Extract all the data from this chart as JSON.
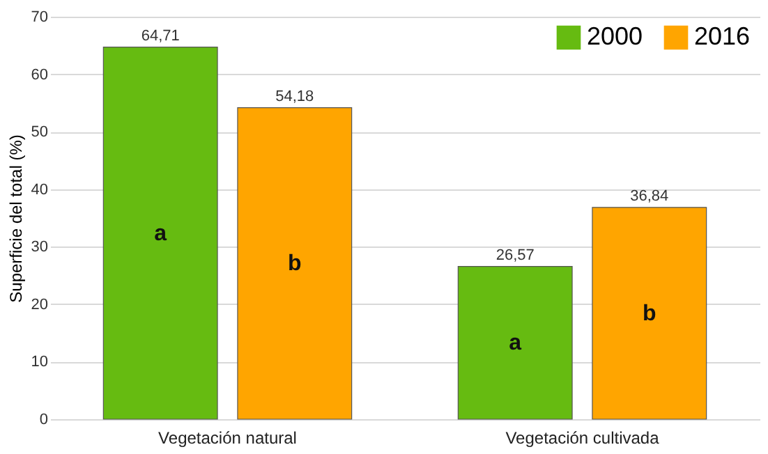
{
  "chart_data": {
    "type": "bar",
    "ylabel": "Superficie del total (%)",
    "categories": [
      "Vegetación natural",
      "Vegetación cultivada"
    ],
    "series": [
      {
        "name": "2000",
        "color": "#66bb11",
        "values": [
          64.71,
          26.57
        ],
        "value_labels": [
          "64,71",
          "26,57"
        ]
      },
      {
        "name": "2016",
        "color": "#ffa500",
        "values": [
          54.18,
          36.84
        ],
        "value_labels": [
          "54,18",
          "36,84"
        ]
      }
    ],
    "ylim": [
      0,
      70
    ],
    "yticks": [
      0,
      10,
      20,
      30,
      40,
      50,
      60,
      70
    ],
    "grid": "y",
    "legend": "top right",
    "annotations": [
      "a",
      "b",
      "a",
      "b"
    ]
  }
}
